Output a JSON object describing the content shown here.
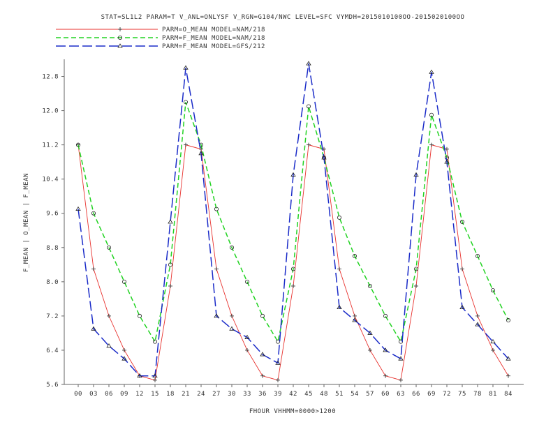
{
  "chart_data": {
    "type": "line",
    "title": "STAT=SL1L2 PARAM=T V_ANL=ONLYSF V_RGN=G104/NWC LEVEL=SFC VYMDH=2015010100OO-2015020100OO",
    "xlabel": "FHOUR VHHMM=0000>1200",
    "ylabel": "F_MEAN | O_MEAN | F_MEAN",
    "categories": [
      "00",
      "03",
      "06",
      "09",
      "12",
      "15",
      "18",
      "21",
      "24",
      "27",
      "30",
      "33",
      "36",
      "39",
      "42",
      "45",
      "48",
      "51",
      "54",
      "57",
      "60",
      "63",
      "66",
      "69",
      "72",
      "75",
      "78",
      "81",
      "84"
    ],
    "ylim": [
      5.6,
      13.2
    ],
    "yticks": [
      "5.6",
      "6.4",
      "7.2",
      "8.0",
      "8.8",
      "9.6",
      "10.4",
      "11.2",
      "12.0",
      "12.8"
    ],
    "grid": false,
    "legend_position": "top-left",
    "series": [
      {
        "name": "PARM=O_MEAN MODEL=NAM/218",
        "color": "#e8322e",
        "dash": "solid",
        "marker": "plus",
        "values": [
          11.2,
          8.3,
          7.2,
          6.4,
          5.8,
          5.7,
          7.9,
          11.2,
          11.1,
          8.3,
          7.2,
          6.4,
          5.8,
          5.7,
          7.9,
          11.2,
          11.1,
          8.3,
          7.2,
          6.4,
          5.8,
          5.7,
          7.9,
          11.2,
          11.1,
          8.3,
          7.2,
          6.4,
          5.8
        ]
      },
      {
        "name": "PARM=F_MEAN MODEL=NAM/218",
        "color": "#22d322",
        "dash": "dashed",
        "marker": "circle",
        "values": [
          11.2,
          9.6,
          8.8,
          8.0,
          7.2,
          6.6,
          8.4,
          12.2,
          11.2,
          9.7,
          8.8,
          8.0,
          7.2,
          6.6,
          8.3,
          12.1,
          10.9,
          9.5,
          8.6,
          7.9,
          7.2,
          6.6,
          8.3,
          11.9,
          10.9,
          9.4,
          8.6,
          7.8,
          7.1
        ]
      },
      {
        "name": "PARM=F_MEAN MODEL=GFS/212",
        "color": "#1a2bc8",
        "dash": "longdash",
        "marker": "triangle",
        "values": [
          9.7,
          6.9,
          6.5,
          6.2,
          5.8,
          5.8,
          9.4,
          13.0,
          11.0,
          7.2,
          6.9,
          6.7,
          6.3,
          6.1,
          10.5,
          13.1,
          10.9,
          7.4,
          7.1,
          6.8,
          6.4,
          6.2,
          10.5,
          12.9,
          10.8,
          7.4,
          7.0,
          6.6,
          6.2
        ]
      }
    ]
  }
}
